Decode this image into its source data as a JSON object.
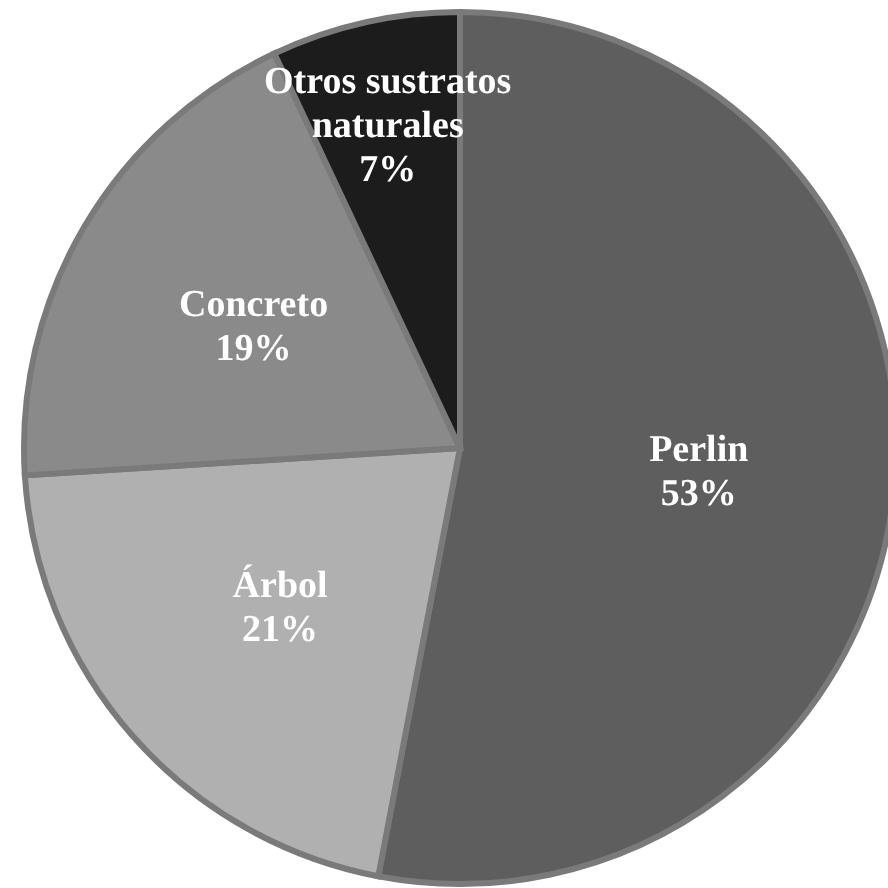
{
  "chart_data": {
    "type": "pie",
    "categories": [
      "Perlin",
      "Árbol",
      "Concreto",
      "Otros sustratos naturales"
    ],
    "values": [
      53,
      21,
      19,
      7
    ],
    "value_labels": [
      "53%",
      "21%",
      "19%",
      "7%"
    ],
    "colors": [
      "#5e5e5e",
      "#b0b0b0",
      "#8a8a8a",
      "#1c1c1c"
    ],
    "legend": false
  }
}
